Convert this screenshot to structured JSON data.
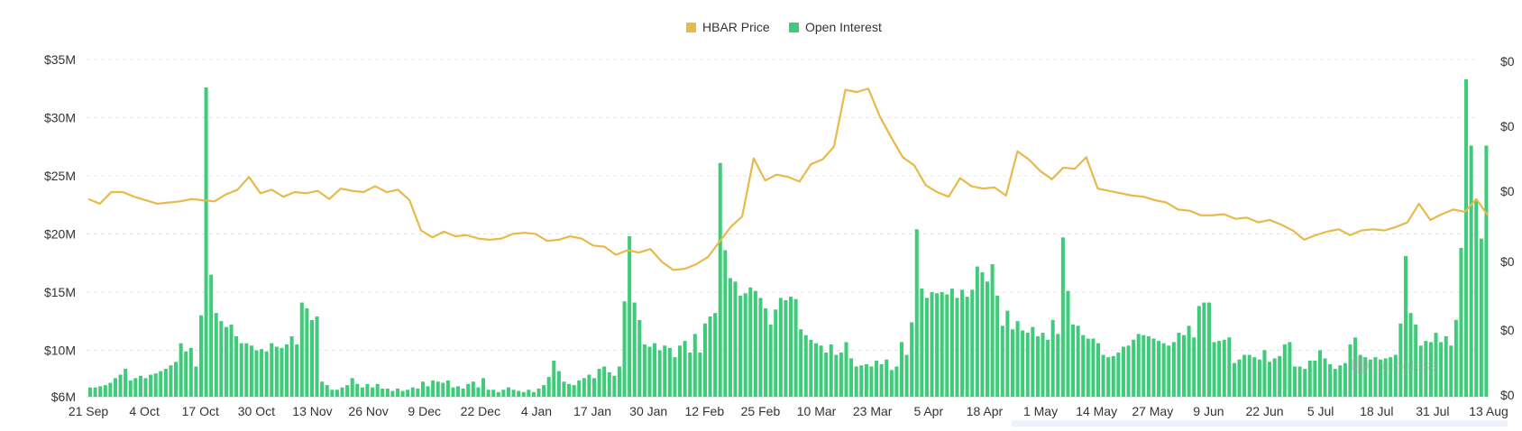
{
  "legend": {
    "price_label": "HBAR Price",
    "oi_label": "Open Interest"
  },
  "watermark": "coinglass",
  "colors": {
    "price": "#e9b949",
    "open_interest": "#3ecb7a",
    "grid": "#e5e5e5",
    "text": "#333333"
  },
  "chart_data": {
    "type": "bar",
    "x_ticks": [
      "21 Sep",
      "4 Oct",
      "17 Oct",
      "30 Oct",
      "13 Nov",
      "26 Nov",
      "9 Dec",
      "22 Dec",
      "4 Jan",
      "17 Jan",
      "30 Jan",
      "12 Feb",
      "25 Feb",
      "10 Mar",
      "23 Mar",
      "5 Apr",
      "18 Apr",
      "1 May",
      "14 May",
      "27 May",
      "9 Jun",
      "22 Jun",
      "5 Jul",
      "18 Jul",
      "31 Jul",
      "13 Aug"
    ],
    "y_left": {
      "ticks": [
        "$35M",
        "$30M",
        "$25M",
        "$20M",
        "$15M",
        "$10M",
        "$6M"
      ],
      "range": [
        6,
        35
      ],
      "unit": "M"
    },
    "y_right": {
      "ticks": [
        "$0",
        "$0",
        "$0",
        "$0",
        "$0",
        "$0"
      ]
    },
    "grid": true,
    "legend_position": "top-center",
    "series": [
      {
        "name": "Open Interest",
        "type": "bar",
        "axis": "left",
        "values": [
          6.8,
          6.8,
          6.9,
          7.0,
          7.2,
          7.6,
          7.9,
          8.4,
          7.4,
          7.6,
          7.8,
          7.6,
          7.9,
          8.0,
          8.2,
          8.4,
          8.7,
          9.0,
          10.6,
          9.9,
          10.2,
          8.6,
          13.0,
          32.6,
          16.5,
          13.2,
          12.5,
          12.0,
          12.2,
          11.2,
          10.6,
          10.6,
          10.4,
          10.0,
          10.1,
          9.9,
          10.6,
          10.3,
          10.2,
          10.5,
          11.2,
          10.5,
          14.1,
          13.6,
          12.6,
          12.9,
          7.3,
          7.0,
          6.6,
          6.6,
          6.8,
          7.0,
          7.6,
          7.1,
          6.8,
          7.1,
          6.8,
          7.1,
          6.7,
          6.7,
          6.5,
          6.7,
          6.5,
          6.6,
          6.8,
          6.7,
          7.3,
          6.9,
          7.4,
          7.3,
          7.2,
          7.4,
          6.8,
          6.9,
          6.7,
          7.1,
          7.3,
          6.8,
          7.6,
          6.6,
          6.6,
          6.4,
          6.6,
          6.8,
          6.6,
          6.5,
          6.4,
          6.6,
          6.4,
          6.7,
          7.0,
          7.7,
          9.1,
          8.2,
          7.3,
          7.1,
          7.0,
          7.4,
          7.6,
          7.9,
          7.6,
          8.4,
          8.6,
          8.1,
          7.8,
          8.6,
          14.2,
          19.8,
          14.1,
          12.6,
          10.5,
          10.3,
          10.6,
          10.0,
          10.4,
          10.2,
          9.4,
          10.4,
          10.8,
          9.8,
          11.4,
          9.8,
          12.3,
          12.9,
          13.2,
          26.1,
          18.6,
          16.2,
          15.9,
          14.7,
          14.9,
          15.4,
          15.1,
          14.5,
          13.6,
          12.2,
          13.5,
          14.5,
          14.3,
          14.6,
          14.4,
          11.8,
          11.3,
          10.9,
          10.6,
          10.4,
          9.8,
          10.5,
          9.6,
          9.8,
          10.7,
          9.3,
          8.6,
          8.7,
          8.8,
          8.6,
          9.1,
          8.8,
          9.2,
          8.3,
          8.6,
          10.7,
          9.6,
          12.4,
          20.4,
          15.3,
          14.5,
          15.0,
          14.9,
          15.0,
          14.8,
          15.3,
          14.5,
          15.2,
          14.6,
          15.2,
          17.2,
          16.7,
          15.9,
          17.4,
          14.7,
          12.1,
          13.4,
          11.8,
          12.5,
          11.7,
          11.5,
          12.0,
          11.2,
          11.5,
          10.9,
          12.6,
          11.4,
          19.7,
          15.1,
          12.2,
          12.1,
          11.3,
          11.0,
          11.0,
          10.6,
          9.6,
          9.4,
          9.5,
          9.8,
          10.3,
          10.4,
          10.9,
          11.4,
          11.3,
          11.2,
          11.0,
          10.8,
          10.6,
          10.4,
          10.7,
          11.5,
          11.3,
          12.1,
          11.1,
          13.8,
          14.1,
          14.1,
          10.7,
          10.8,
          10.9,
          11.1,
          8.9,
          9.2,
          9.6,
          9.6,
          9.4,
          9.2,
          10.0,
          9.0,
          9.3,
          9.5,
          10.5,
          10.7,
          8.6,
          8.6,
          8.4,
          9.1,
          9.1,
          10.0,
          9.3,
          8.8,
          8.4,
          8.7,
          8.9,
          10.5,
          11.1,
          9.6,
          9.4,
          9.2,
          9.4,
          9.2,
          9.3,
          9.4,
          9.6,
          12.3,
          18.1,
          13.2,
          12.2,
          10.4,
          10.8,
          10.7,
          11.5,
          10.7,
          11.2,
          10.4,
          12.6,
          18.8,
          33.3,
          27.6,
          22.9,
          19.6,
          27.6
        ]
      },
      {
        "name": "HBAR Price",
        "type": "line",
        "axis": "right",
        "values": [
          23.0,
          22.6,
          23.6,
          23.6,
          23.2,
          22.9,
          22.6,
          22.7,
          22.8,
          23.0,
          22.9,
          22.8,
          23.4,
          23.8,
          24.9,
          23.5,
          23.8,
          23.2,
          23.6,
          23.5,
          23.7,
          23.0,
          23.9,
          23.7,
          23.6,
          24.1,
          23.6,
          23.8,
          22.9,
          20.3,
          19.7,
          20.2,
          19.8,
          19.9,
          19.6,
          19.5,
          19.6,
          20.0,
          20.1,
          20.0,
          19.4,
          19.5,
          19.8,
          19.6,
          19.0,
          18.9,
          18.2,
          18.6,
          18.4,
          18.7,
          17.6,
          16.9,
          17.0,
          17.4,
          18.0,
          19.3,
          20.6,
          21.5,
          26.5,
          24.6,
          25.1,
          24.9,
          24.5,
          26.0,
          26.4,
          27.5,
          32.4,
          32.2,
          32.5,
          30.1,
          28.3,
          26.6,
          25.9,
          24.2,
          23.6,
          23.2,
          24.8,
          24.1,
          23.9,
          24.0,
          23.3,
          27.1,
          26.4,
          25.4,
          24.7,
          25.7,
          25.6,
          26.6,
          23.9,
          23.7,
          23.5,
          23.3,
          23.2,
          22.9,
          22.7,
          22.1,
          22.0,
          21.6,
          21.6,
          21.7,
          21.3,
          21.4,
          21.0,
          21.2,
          20.8,
          20.3,
          19.5,
          19.9,
          20.2,
          20.4,
          19.9,
          20.3,
          20.4,
          20.3,
          20.6,
          21.0,
          22.6,
          21.2,
          21.7,
          22.1,
          21.9,
          23.0,
          21.6
        ]
      }
    ]
  }
}
